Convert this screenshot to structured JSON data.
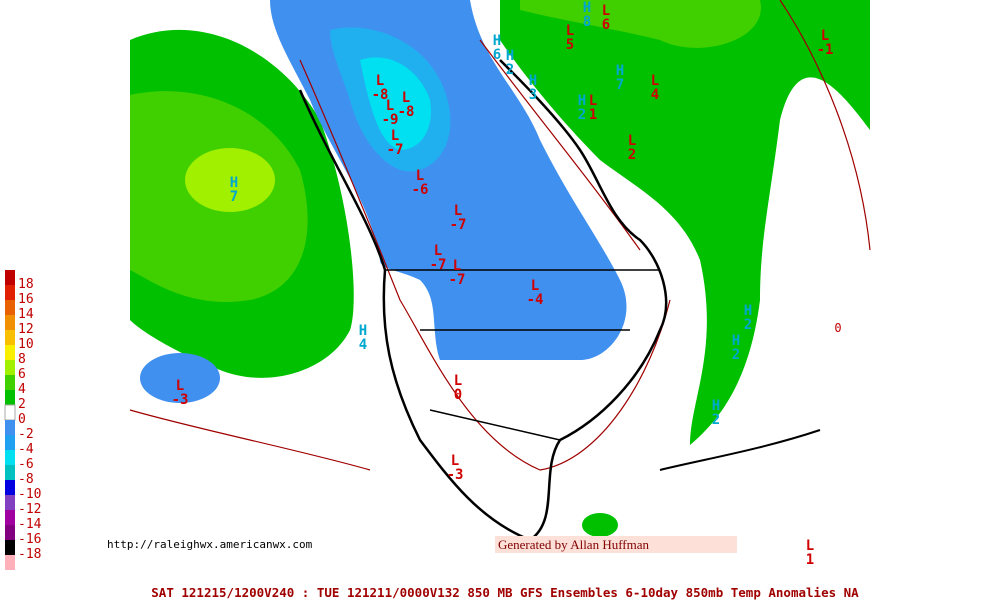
{
  "map": {
    "footer": "SAT 121215/1200V240 : TUE 121211/0000V132  850 MB GFS Ensembles 6-10day 850mb Temp Anomalies NA",
    "url": "http://raleighwx.americanwx.com",
    "credit": "Generated by Allan Huffman",
    "legend": [
      "18",
      "16",
      "14",
      "12",
      "10",
      "8",
      "6",
      "4",
      "2",
      "0",
      "-2",
      "-4",
      "-6",
      "-8",
      "-10",
      "-12",
      "-14",
      "-16",
      "-18"
    ],
    "labels": [
      {
        "kind": "H",
        "value": "7"
      },
      {
        "kind": "L",
        "value": "-3"
      },
      {
        "kind": "L",
        "value": "-1"
      },
      {
        "kind": "H",
        "value": "2"
      },
      {
        "kind": "H",
        "value": "2"
      },
      {
        "kind": "H",
        "value": "2"
      },
      {
        "kind": "L",
        "value": "-3"
      },
      {
        "kind": "L",
        "value": "-4"
      },
      {
        "kind": "L",
        "value": "-7"
      },
      {
        "kind": "L",
        "value": "-7"
      },
      {
        "kind": "L",
        "value": "-7"
      },
      {
        "kind": "L",
        "value": "-6"
      },
      {
        "kind": "L",
        "value": "-8"
      },
      {
        "kind": "L",
        "value": "-9"
      },
      {
        "kind": "L",
        "value": "-8"
      },
      {
        "kind": "L",
        "value": "-7"
      },
      {
        "kind": "H",
        "value": "6"
      },
      {
        "kind": "H",
        "value": "2"
      },
      {
        "kind": "H",
        "value": "3"
      },
      {
        "kind": "L",
        "value": "5"
      },
      {
        "kind": "L",
        "value": "6"
      },
      {
        "kind": "H",
        "value": "8"
      },
      {
        "kind": "H",
        "value": "7"
      },
      {
        "kind": "L",
        "value": "4"
      },
      {
        "kind": "H",
        "value": "2"
      },
      {
        "kind": "L",
        "value": "1"
      },
      {
        "kind": "L",
        "value": "2"
      },
      {
        "kind": "H",
        "value": "4"
      },
      {
        "kind": "L",
        "value": "0"
      },
      {
        "kind": "L",
        "value": "1"
      }
    ],
    "contour_labels": [
      "0"
    ]
  }
}
